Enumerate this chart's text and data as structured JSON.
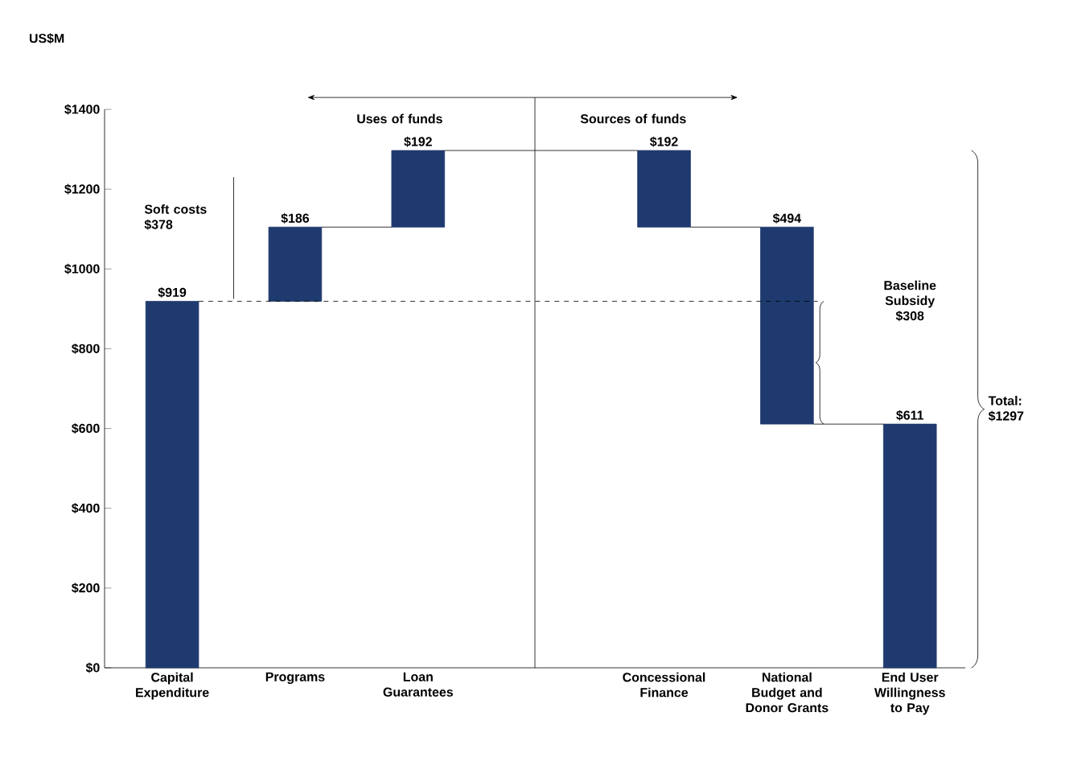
{
  "chart_data": {
    "type": "bar",
    "categories": [
      "Capital Expenditure",
      "Programs",
      "Loan Guarantees",
      null,
      "Concessional Finance",
      "National Budget and Donor Grants",
      "End User Willingness to Pay"
    ],
    "values": [
      919,
      186,
      192,
      null,
      192,
      494,
      611
    ],
    "base": [
      0,
      919,
      1105,
      null,
      1105,
      611,
      0
    ],
    "value_labels": [
      "$919",
      "$186",
      "$192",
      null,
      "$192",
      "$494",
      "$611"
    ],
    "color": "#1f3a6e",
    "ylim": [
      0,
      1400
    ],
    "yticks": [
      {
        "value": 0,
        "label": "$0"
      },
      {
        "value": 200,
        "label": "$200"
      },
      {
        "value": 400,
        "label": "$400"
      },
      {
        "value": 600,
        "label": "$600"
      },
      {
        "value": 800,
        "label": "$800"
      },
      {
        "value": 1000,
        "label": "$1000"
      },
      {
        "value": 1200,
        "label": "$1200"
      },
      {
        "value": 1400,
        "label": "$1400"
      }
    ],
    "ref_lines": [
      {
        "axis": "y",
        "value": 919,
        "line_style": "dashed"
      }
    ],
    "annotations": [
      "US$M",
      "Uses of funds",
      "Sources of funds",
      "Soft costs $378",
      "Baseline Subsidy $308",
      "Total: $1297"
    ]
  }
}
